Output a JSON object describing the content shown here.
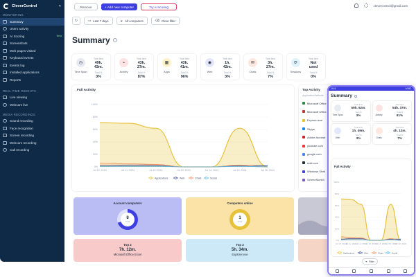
{
  "app": {
    "name": "CleverControl"
  },
  "sidebar": {
    "section_monitoring": "MONITORING",
    "items_monitoring": [
      "Summary",
      "Users activity",
      "AI Scoring",
      "Screenshots",
      "Web pages visited",
      "Keyboard events",
      "Events log",
      "Installed applications",
      "Reports"
    ],
    "beta_badge": "Beta",
    "section_realtime": "REAL-TIME INSIGHTS",
    "items_realtime": [
      "Live viewing",
      "Webcam live"
    ],
    "section_media": "MEDIA RECORDINGS",
    "items_media": [
      "Sound recording",
      "Face recognition",
      "Screen recording",
      "Webcam recording",
      "Call recording"
    ]
  },
  "topbar": {
    "remove": "Remove",
    "add": "+ Add new computer",
    "try_ai": "Try AI scoring",
    "account": "clevercontrol@gmail.com"
  },
  "filters": {
    "refresh": "↻",
    "range": "Last 7 days",
    "computers": "All computers",
    "clear": "Clear filter"
  },
  "page_title": "Summary",
  "stats": [
    {
      "label": "Time Span",
      "k1": "Total time",
      "v1": "49h. 43m.",
      "k2": "Total %",
      "v2": "3%",
      "color": "#e7eaf0",
      "icon": "◷"
    },
    {
      "label": "Activity",
      "k1": "Total time",
      "v1": "43h. 27m.",
      "k2": "Total %",
      "v2": "87%",
      "color": "#fde2e4",
      "icon": "⌁"
    },
    {
      "label": "Apps",
      "k1": "Total time",
      "v1": "43h. 41m.",
      "k2": "Total %",
      "v2": "96%",
      "color": "#fdf1c7",
      "icon": "▦"
    },
    {
      "label": "Web",
      "k1": "Total time",
      "v1": "1h. 42m.",
      "k2": "Total %",
      "v2": "3%",
      "color": "#e4e6fb",
      "icon": "◉"
    },
    {
      "label": "Chats",
      "k1": "Total time",
      "v1": "3h. 27m.",
      "k2": "Total %",
      "v2": "7%",
      "color": "#fde7df",
      "icon": "✉"
    },
    {
      "label": "Sessions",
      "k1": "Total time",
      "v1": "Not used",
      "k2": "Total %",
      "v2": "0%",
      "color": "#dff1fb",
      "icon": "⟳"
    }
  ],
  "full_activity": {
    "title": "Full Activity"
  },
  "chart_data": {
    "type": "area",
    "title": "Full Activity",
    "x": [
      "Jul 10, 2024",
      "Jul 11, 2024",
      "Jul 12, 2024",
      "Jul 13, 2024",
      "Jul 14, 2024",
      "Jul 15, 2024",
      "Jul 16, 2024"
    ],
    "ylim": [
      0,
      100
    ],
    "yticks": [
      "0%",
      "20%",
      "40%",
      "60%",
      "80%",
      "100%"
    ],
    "series": [
      {
        "name": "Applications",
        "color": "#e6c13a",
        "values": [
          71,
          70,
          62,
          0,
          0,
          62,
          0
        ]
      },
      {
        "name": "Web",
        "color": "#2f4a9b",
        "values": [
          2,
          3,
          3,
          0,
          0,
          2,
          2
        ]
      },
      {
        "name": "Chats",
        "color": "#f08c5a",
        "values": [
          6,
          5,
          4,
          0,
          0,
          3,
          0
        ]
      },
      {
        "name": "Social",
        "color": "#4fb6e8",
        "values": [
          1,
          1,
          1,
          0,
          0,
          1,
          0
        ]
      }
    ],
    "legend_position": "bottom"
  },
  "top_activity": {
    "title": "Top Activity",
    "sub": "Application/Website",
    "items": [
      {
        "name": "Microsoft Office",
        "color": "#2b8a3e"
      },
      {
        "name": "Microsoft Office",
        "color": "#c0392b"
      },
      {
        "name": "Explorer.exe",
        "color": "#e6c13a"
      },
      {
        "name": "Skype",
        "color": "#1e88e5"
      },
      {
        "name": "Adobe Acrobat",
        "color": "#c62828"
      },
      {
        "name": "youtube.com",
        "color": "#e53935"
      },
      {
        "name": "google.com",
        "color": "#4285f4"
      },
      {
        "name": "mail.com",
        "color": "#1f2a37"
      },
      {
        "name": "Windows Shell",
        "color": "#3d3fe0"
      },
      {
        "name": "ScreenSketch",
        "color": "#7e57c2"
      }
    ]
  },
  "bottom_cards": {
    "accounts_title": "Account computers",
    "accounts_value": "8",
    "accounts_sub": "Total",
    "online_title": "Computers online",
    "online_value": "1",
    "online_sub": "Total",
    "top2_title": "Top 2",
    "top2_time": "7h. 12m.",
    "top2_app": "Microsoft Office Excel",
    "top3_title": "Top 3",
    "top3_time": "5h. 34m.",
    "top3_app": "Explorer.exe"
  },
  "phone": {
    "status_left": "9:41",
    "status_right": "AI 5G",
    "title": "Summary",
    "cards": [
      {
        "label": "Time Span",
        "k1": "Total time",
        "v1": "59h. 52m.",
        "k2": "Total %",
        "v2": "3%",
        "color": "#e7eaf0"
      },
      {
        "label": "Activity",
        "k1": "Total time",
        "v1": "54h. 37m.",
        "k2": "Total %",
        "v2": "81%",
        "color": "#fde2e4"
      },
      {
        "label": "Web",
        "k1": "Total time",
        "v1": "1h. 49m.",
        "k2": "Total %",
        "v2": "3%",
        "color": "#e4e6fb"
      },
      {
        "label": "Chats",
        "k1": "Total time",
        "v1": "4h. 12m.",
        "k2": "Total %",
        "v2": "7%",
        "color": "#fde7df"
      }
    ],
    "chart_title": "Full Activity",
    "filter": "Filter"
  }
}
